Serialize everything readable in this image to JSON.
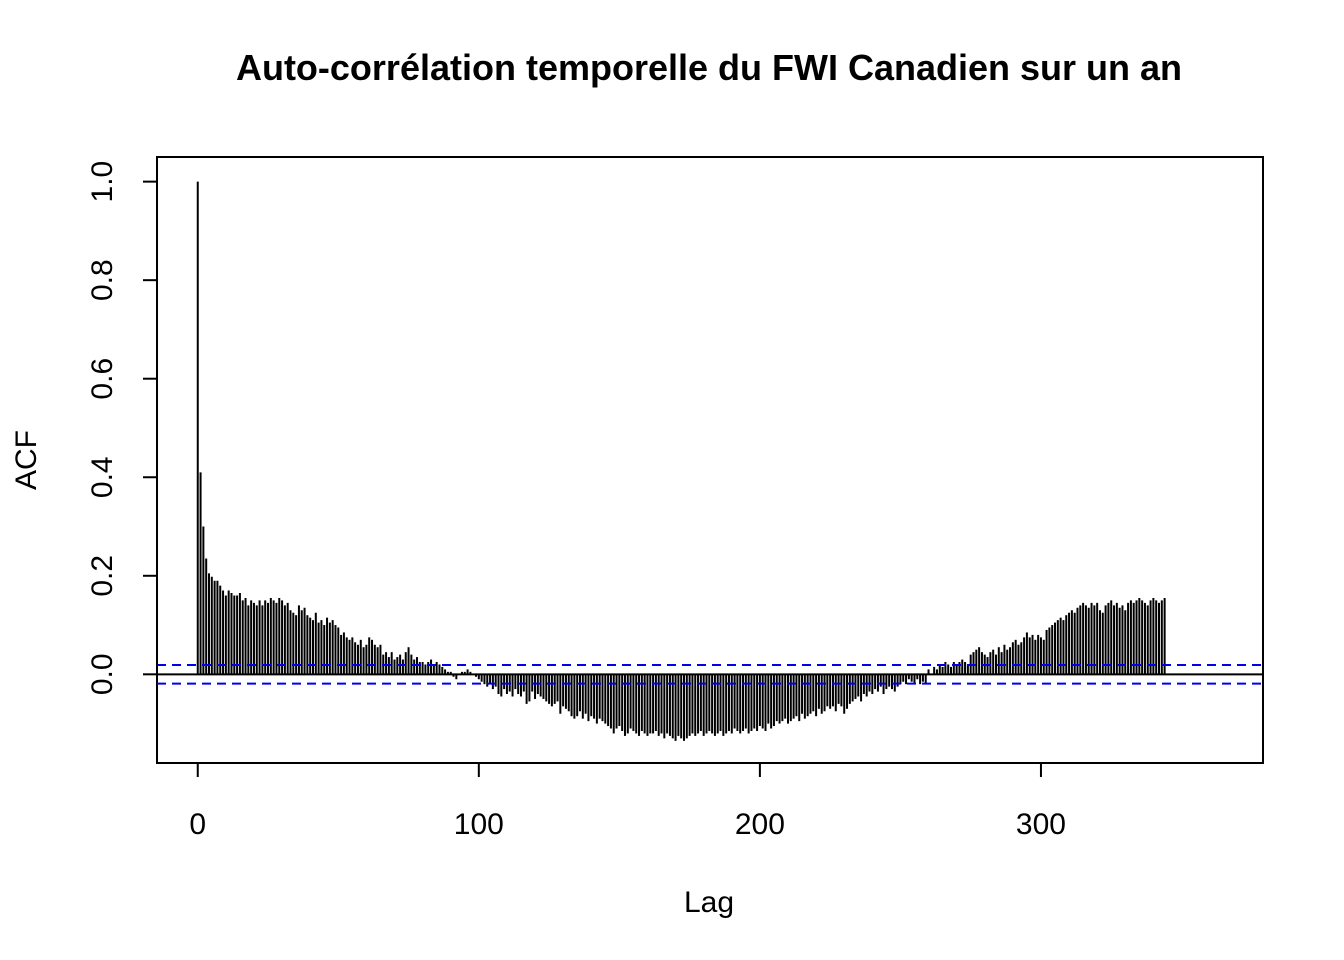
{
  "chart_data": {
    "type": "bar",
    "title": "Auto-corrélation temporelle du FWI Canadien sur un an",
    "xlabel": "Lag",
    "ylabel": "ACF",
    "xlim": [
      -14.5,
      379
    ],
    "ylim": [
      -0.18,
      1.05
    ],
    "xticks": [
      0,
      100,
      200,
      300
    ],
    "xtick_labels": [
      "0",
      "100",
      "200",
      "300"
    ],
    "yticks": [
      0.0,
      0.2,
      0.4,
      0.6,
      0.8,
      1.0
    ],
    "ytick_labels": [
      "0.0",
      "0.2",
      "0.4",
      "0.6",
      "0.8",
      "1.0"
    ],
    "grid": false,
    "lag_start": 0,
    "lag_step": 1,
    "confidence_bound": 0.019,
    "colors": {
      "bars": "#000000",
      "confidence": "#0000ee",
      "zero_line": "#000000"
    },
    "acf": [
      1.0,
      0.41,
      0.3,
      0.235,
      0.205,
      0.198,
      0.19,
      0.19,
      0.18,
      0.17,
      0.16,
      0.17,
      0.165,
      0.16,
      0.16,
      0.165,
      0.15,
      0.155,
      0.14,
      0.15,
      0.145,
      0.14,
      0.15,
      0.14,
      0.15,
      0.145,
      0.155,
      0.15,
      0.145,
      0.155,
      0.15,
      0.14,
      0.145,
      0.13,
      0.125,
      0.12,
      0.14,
      0.13,
      0.135,
      0.12,
      0.115,
      0.11,
      0.125,
      0.105,
      0.11,
      0.1,
      0.115,
      0.105,
      0.11,
      0.1,
      0.095,
      0.08,
      0.085,
      0.075,
      0.07,
      0.075,
      0.065,
      0.06,
      0.07,
      0.055,
      0.06,
      0.075,
      0.07,
      0.06,
      0.055,
      0.06,
      0.04,
      0.045,
      0.035,
      0.045,
      0.03,
      0.035,
      0.04,
      0.03,
      0.045,
      0.055,
      0.04,
      0.03,
      0.035,
      0.025,
      0.025,
      0.02,
      0.025,
      0.03,
      0.02,
      0.025,
      0.02,
      0.015,
      0.01,
      0.005,
      0.005,
      -0.005,
      -0.01,
      0.0,
      0.005,
      0.005,
      0.01,
      0.005,
      0.0,
      -0.005,
      -0.01,
      -0.015,
      -0.02,
      -0.025,
      -0.02,
      -0.03,
      -0.025,
      -0.04,
      -0.045,
      -0.03,
      -0.04,
      -0.035,
      -0.045,
      -0.03,
      -0.04,
      -0.045,
      -0.035,
      -0.06,
      -0.055,
      -0.035,
      -0.05,
      -0.04,
      -0.045,
      -0.05,
      -0.055,
      -0.06,
      -0.065,
      -0.06,
      -0.055,
      -0.08,
      -0.065,
      -0.07,
      -0.075,
      -0.085,
      -0.09,
      -0.085,
      -0.075,
      -0.09,
      -0.08,
      -0.095,
      -0.085,
      -0.09,
      -0.1,
      -0.09,
      -0.095,
      -0.1,
      -0.105,
      -0.11,
      -0.12,
      -0.11,
      -0.105,
      -0.115,
      -0.125,
      -0.12,
      -0.11,
      -0.115,
      -0.12,
      -0.125,
      -0.115,
      -0.12,
      -0.125,
      -0.12,
      -0.12,
      -0.115,
      -0.125,
      -0.12,
      -0.13,
      -0.12,
      -0.125,
      -0.13,
      -0.135,
      -0.125,
      -0.13,
      -0.135,
      -0.13,
      -0.125,
      -0.12,
      -0.125,
      -0.12,
      -0.115,
      -0.125,
      -0.12,
      -0.115,
      -0.12,
      -0.125,
      -0.12,
      -0.115,
      -0.125,
      -0.12,
      -0.115,
      -0.12,
      -0.11,
      -0.115,
      -0.12,
      -0.115,
      -0.11,
      -0.12,
      -0.115,
      -0.11,
      -0.115,
      -0.105,
      -0.11,
      -0.115,
      -0.1,
      -0.11,
      -0.105,
      -0.095,
      -0.1,
      -0.095,
      -0.09,
      -0.1,
      -0.095,
      -0.09,
      -0.085,
      -0.095,
      -0.08,
      -0.09,
      -0.085,
      -0.08,
      -0.075,
      -0.085,
      -0.07,
      -0.08,
      -0.075,
      -0.065,
      -0.07,
      -0.065,
      -0.075,
      -0.06,
      -0.065,
      -0.08,
      -0.07,
      -0.06,
      -0.055,
      -0.05,
      -0.045,
      -0.055,
      -0.04,
      -0.045,
      -0.035,
      -0.04,
      -0.03,
      -0.035,
      -0.025,
      -0.04,
      -0.03,
      -0.025,
      -0.03,
      -0.035,
      -0.025,
      -0.02,
      -0.015,
      -0.02,
      -0.01,
      -0.015,
      -0.02,
      -0.01,
      -0.02,
      -0.015,
      -0.02,
      0.01,
      0.0,
      0.015,
      0.01,
      0.02,
      0.015,
      0.025,
      0.02,
      0.015,
      0.025,
      0.02,
      0.025,
      0.03,
      0.025,
      0.02,
      0.04,
      0.045,
      0.05,
      0.055,
      0.045,
      0.04,
      0.035,
      0.045,
      0.05,
      0.04,
      0.055,
      0.045,
      0.06,
      0.05,
      0.055,
      0.065,
      0.07,
      0.06,
      0.065,
      0.075,
      0.085,
      0.075,
      0.08,
      0.07,
      0.08,
      0.075,
      0.07,
      0.09,
      0.095,
      0.1,
      0.105,
      0.11,
      0.115,
      0.11,
      0.12,
      0.125,
      0.13,
      0.125,
      0.135,
      0.14,
      0.145,
      0.14,
      0.135,
      0.145,
      0.14,
      0.145,
      0.13,
      0.125,
      0.14,
      0.145,
      0.15,
      0.14,
      0.145,
      0.135,
      0.14,
      0.13,
      0.145,
      0.15,
      0.145,
      0.15,
      0.155,
      0.15,
      0.145,
      0.14,
      0.15,
      0.155,
      0.15,
      0.145,
      0.15,
      0.155
    ]
  }
}
